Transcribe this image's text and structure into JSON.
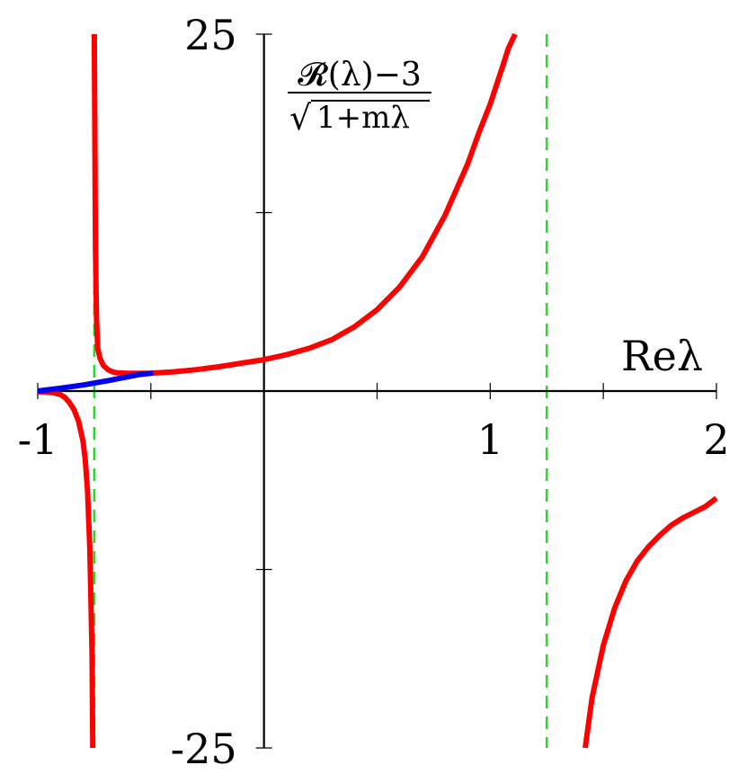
{
  "chart_data": {
    "type": "line",
    "title": "",
    "xlabel": "Reλ",
    "ylabel": {
      "numerator": "𝓡(λ)−3",
      "denominator_radicand": "1+mλ",
      "denominator_sign": "√"
    },
    "xlim": [
      -1,
      2
    ],
    "ylim": [
      -25,
      25
    ],
    "x_ticks": [
      -1,
      -0.5,
      0,
      0.5,
      1,
      1.5,
      2
    ],
    "y_ticks": [
      -25,
      -12.5,
      0,
      12.5,
      25
    ],
    "x_tick_labels": [
      {
        "x": -1,
        "label": "-1"
      },
      {
        "x": 1,
        "label": "1"
      },
      {
        "x": 2,
        "label": "2"
      }
    ],
    "y_tick_labels": [
      {
        "y": 25,
        "label": "25"
      },
      {
        "y": -25,
        "label": "-25"
      }
    ],
    "grid": false,
    "asymptotes": {
      "color": "#22dd22",
      "style": "dashed",
      "x": [
        -0.75,
        1.25
      ]
    },
    "series": [
      {
        "color": "#ff0000",
        "points": [
          [
            -0.75,
            25
          ],
          [
            -0.745,
            10
          ],
          [
            -0.74,
            5
          ],
          [
            -0.735,
            3
          ],
          [
            -0.725,
            2.3
          ],
          [
            -0.71,
            1.8
          ],
          [
            -0.69,
            1.5
          ],
          [
            -0.67,
            1.35
          ],
          [
            -0.65,
            1.28
          ],
          [
            -0.6,
            1.24
          ],
          [
            -0.5,
            1.25
          ],
          [
            -0.4,
            1.35
          ],
          [
            -0.3,
            1.5
          ],
          [
            -0.2,
            1.7
          ],
          [
            -0.1,
            1.95
          ],
          [
            0,
            2.2
          ],
          [
            0.1,
            2.55
          ],
          [
            0.2,
            3.0
          ],
          [
            0.3,
            3.6
          ],
          [
            0.4,
            4.5
          ],
          [
            0.5,
            5.7
          ],
          [
            0.6,
            7.3
          ],
          [
            0.7,
            9.4
          ],
          [
            0.8,
            12.3
          ],
          [
            0.9,
            15.9
          ],
          [
            0.95,
            18.1
          ],
          [
            1.0,
            20.1
          ],
          [
            1.05,
            22.5
          ],
          [
            1.08,
            24.0
          ],
          [
            1.11,
            25
          ]
        ]
      },
      {
        "color": "#ff0000",
        "points": [
          [
            -1.0,
            -0.04
          ],
          [
            -0.97,
            -0.06
          ],
          [
            -0.93,
            -0.12
          ],
          [
            -0.9,
            -0.25
          ],
          [
            -0.88,
            -0.45
          ],
          [
            -0.86,
            -0.8
          ],
          [
            -0.84,
            -1.3
          ],
          [
            -0.82,
            -2.1
          ],
          [
            -0.8,
            -3.5
          ],
          [
            -0.79,
            -4.8
          ],
          [
            -0.78,
            -7.0
          ],
          [
            -0.77,
            -11.0
          ],
          [
            -0.765,
            -14.5
          ],
          [
            -0.76,
            -18.5
          ],
          [
            -0.757,
            -25
          ]
        ]
      },
      {
        "color": "#ff0000",
        "points": [
          [
            1.42,
            -25
          ],
          [
            1.45,
            -21.5
          ],
          [
            1.5,
            -17.8
          ],
          [
            1.55,
            -15.2
          ],
          [
            1.6,
            -13.3
          ],
          [
            1.65,
            -11.9
          ],
          [
            1.7,
            -10.9
          ],
          [
            1.75,
            -10.1
          ],
          [
            1.8,
            -9.4
          ],
          [
            1.85,
            -8.9
          ],
          [
            1.9,
            -8.5
          ],
          [
            1.95,
            -8.1
          ],
          [
            2.0,
            -7.5
          ]
        ]
      },
      {
        "color": "#0000ee",
        "points": [
          [
            -1.0,
            0.0
          ],
          [
            -0.9,
            0.2
          ],
          [
            -0.8,
            0.42
          ],
          [
            -0.7,
            0.7
          ],
          [
            -0.6,
            1.0
          ],
          [
            -0.55,
            1.16
          ],
          [
            -0.49,
            1.26
          ]
        ]
      }
    ]
  }
}
